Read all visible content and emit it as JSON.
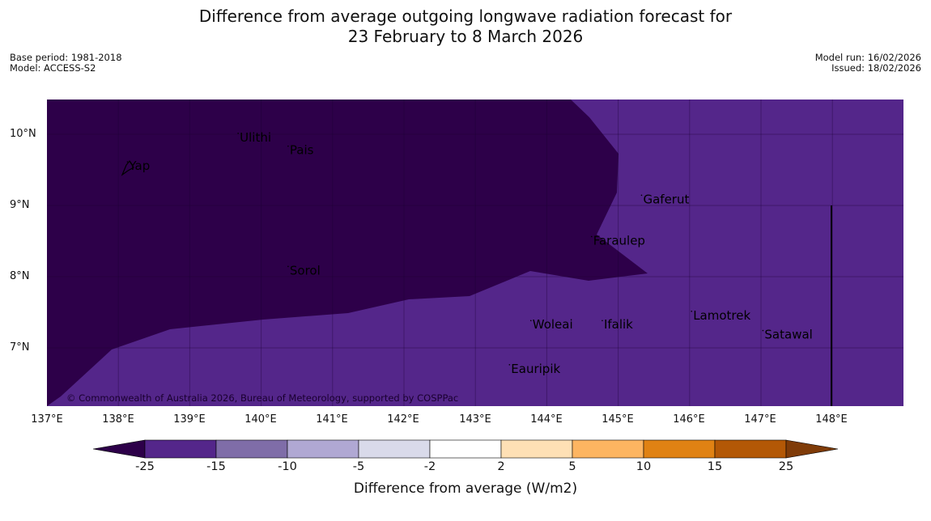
{
  "title": {
    "line1": "Difference from average outgoing longwave radiation forecast for",
    "line2": "23 February to 8 March 2026"
  },
  "meta_left": {
    "base_period": "Base period: 1981-2018",
    "model": "Model: ACCESS-S2"
  },
  "meta_right": {
    "model_run": "Model run: 16/02/2026",
    "issued": "Issued: 18/02/2026"
  },
  "map": {
    "lon_range": [
      137,
      149
    ],
    "lat_range": [
      6.2,
      10.5
    ],
    "lon_ticks": [
      "137°E",
      "138°E",
      "139°E",
      "140°E",
      "141°E",
      "142°E",
      "143°E",
      "144°E",
      "145°E",
      "146°E",
      "147°E",
      "148°E"
    ],
    "lat_ticks": [
      "10°N",
      "9°N",
      "8°N",
      "7°N"
    ],
    "copyright": "© Commonwealth of Australia 2026, Bureau of Meteorology, supported by COSPPac",
    "places": [
      {
        "name": "Ulithi",
        "lon": 139.7,
        "lat": 9.9
      },
      {
        "name": "Pais",
        "lon": 140.4,
        "lat": 9.72
      },
      {
        "name": "Yap",
        "lon": 138.15,
        "lat": 9.5
      },
      {
        "name": "Gaferut",
        "lon": 145.35,
        "lat": 9.03
      },
      {
        "name": "Faraulep",
        "lon": 144.65,
        "lat": 8.45
      },
      {
        "name": "Sorol",
        "lon": 140.4,
        "lat": 8.03
      },
      {
        "name": "Woleai",
        "lon": 143.8,
        "lat": 7.27
      },
      {
        "name": "Ifalik",
        "lon": 144.8,
        "lat": 7.27
      },
      {
        "name": "Lamotrek",
        "lon": 146.05,
        "lat": 7.4
      },
      {
        "name": "Satawal",
        "lon": 147.05,
        "lat": 7.13
      },
      {
        "name": "Eauripik",
        "lon": 143.5,
        "lat": 6.65
      }
    ],
    "anomaly_regions": [
      {
        "category": "-25 or less",
        "color": "#2d0049"
      },
      {
        "category": "-25 to -15",
        "color": "#54268a"
      }
    ]
  },
  "colorbar": {
    "title": "Difference from average (W/m2)",
    "ticks": [
      "-25",
      "-15",
      "-10",
      "-5",
      "-2",
      "2",
      "5",
      "10",
      "15",
      "25"
    ],
    "below_color": "#2d0049",
    "above_color": "#7f3b08",
    "colors": [
      "#54268a",
      "#7f6da8",
      "#b0a8d3",
      "#d9daea",
      "#ffffff",
      "#fee0b5",
      "#fdb561",
      "#e08213",
      "#b35806"
    ]
  }
}
